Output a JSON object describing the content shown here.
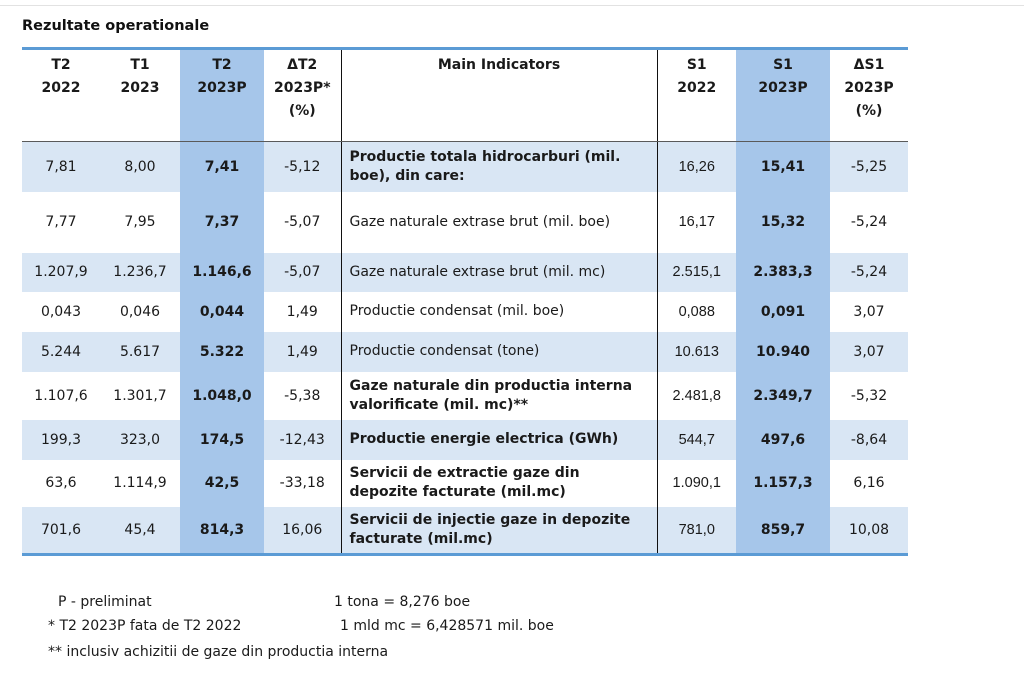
{
  "title": "Rezultate operationale",
  "headers": [
    [
      "T2",
      "2022"
    ],
    [
      "T1",
      "2023"
    ],
    [
      "T2",
      "2023P"
    ],
    [
      "ΔT2",
      "2023P*",
      "(%)"
    ],
    [
      "Main Indicators"
    ],
    [
      "S1",
      "2022"
    ],
    [
      "S1",
      "2023P"
    ],
    [
      "ΔS1",
      "2023P",
      "(%)"
    ]
  ],
  "rows": [
    {
      "t2_2022": "7,81",
      "t1_2023": "8,00",
      "t2_2023p": "7,41",
      "d_t2": "-5,12",
      "indicator": "Productie totala hidrocarburi (mil. boe), din care:",
      "s1_2022": "16,26",
      "s1_2023p": "15,41",
      "d_s1": "-5,25"
    },
    {
      "t2_2022": "7,77",
      "t1_2023": "7,95",
      "t2_2023p": "7,37",
      "d_t2": "-5,07",
      "indicator": "Gaze naturale extrase brut (mil. boe)",
      "s1_2022": "16,17",
      "s1_2023p": "15,32",
      "d_s1": "-5,24"
    },
    {
      "t2_2022": "1.207,9",
      "t1_2023": "1.236,7",
      "t2_2023p": "1.146,6",
      "d_t2": "-5,07",
      "indicator": "Gaze naturale extrase brut (mil. mc)",
      "s1_2022": "2.515,1",
      "s1_2023p": "2.383,3",
      "d_s1": "-5,24"
    },
    {
      "t2_2022": "0,043",
      "t1_2023": "0,046",
      "t2_2023p": "0,044",
      "d_t2": "1,49",
      "indicator": "Productie condensat (mil. boe)",
      "s1_2022": "0,088",
      "s1_2023p": "0,091",
      "d_s1": "3,07"
    },
    {
      "t2_2022": "5.244",
      "t1_2023": "5.617",
      "t2_2023p": "5.322",
      "d_t2": "1,49",
      "indicator": "Productie condensat (tone)",
      "s1_2022": "10.613",
      "s1_2023p": "10.940",
      "d_s1": "3,07"
    },
    {
      "t2_2022": "1.107,6",
      "t1_2023": "1.301,7",
      "t2_2023p": "1.048,0",
      "d_t2": "-5,38",
      "indicator": "Gaze naturale din productia interna valorificate (mil. mc)**",
      "s1_2022": "2.481,8",
      "s1_2023p": "2.349,7",
      "d_s1": "-5,32"
    },
    {
      "t2_2022": "199,3",
      "t1_2023": "323,0",
      "t2_2023p": "174,5",
      "d_t2": "-12,43",
      "indicator": "Productie energie electrica (GWh)",
      "s1_2022": "544,7",
      "s1_2023p": "497,6",
      "d_s1": "-8,64"
    },
    {
      "t2_2022": "63,6",
      "t1_2023": "1.114,9",
      "t2_2023p": "42,5",
      "d_t2": "-33,18",
      "indicator": "Servicii de extractie gaze din depozite facturate (mil.mc)",
      "s1_2022": "1.090,1",
      "s1_2023p": "1.157,3",
      "d_s1": "6,16"
    },
    {
      "t2_2022": "701,6",
      "t1_2023": "45,4",
      "t2_2023p": "814,3",
      "d_t2": "16,06",
      "indicator": "Servicii de injectie gaze in depozite facturate (mil.mc)",
      "s1_2022": "781,0",
      "s1_2023p": "859,7",
      "d_s1": "10,08"
    }
  ],
  "notes": {
    "preliminat": "P - preliminat",
    "fata": "* T2 2023P fata de T2 2022",
    "achizitii": "** inclusiv achizitii de gaze din productia interna",
    "tona": "1 tona = 8,276 boe",
    "mld": "1 mld mc = 6,428571 mil. boe"
  }
}
